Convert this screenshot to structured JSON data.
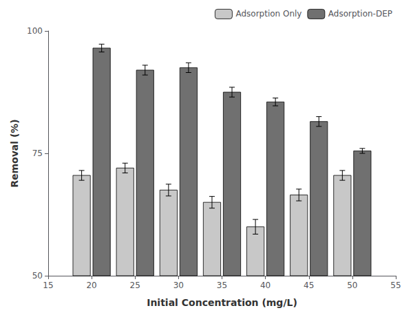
{
  "chart_data": {
    "type": "bar",
    "xlabel": "Initial Concentration (mg/L)",
    "ylabel": "Removal (%)",
    "x": [
      20,
      25,
      30,
      35,
      40,
      45,
      50
    ],
    "series": [
      {
        "name": "Adsorption Only",
        "color": "#c8c8c8",
        "values": [
          70.5,
          72.0,
          67.5,
          65.0,
          60.0,
          66.5,
          70.5
        ],
        "errors": [
          1.0,
          1.0,
          1.2,
          1.2,
          1.5,
          1.2,
          1.0
        ]
      },
      {
        "name": "Adsorption-DEP",
        "color": "#707070",
        "values": [
          96.5,
          92.0,
          92.5,
          87.5,
          85.5,
          81.5,
          75.5
        ],
        "errors": [
          0.8,
          1.0,
          1.0,
          1.0,
          0.8,
          1.0,
          0.5
        ]
      }
    ],
    "xlim": [
      15,
      55
    ],
    "xticks": [
      15,
      20,
      25,
      30,
      35,
      40,
      45,
      50,
      55
    ],
    "ylim": [
      50,
      100
    ],
    "yticks": [
      50,
      75,
      100
    ],
    "legend": "upper right",
    "grid": false
  }
}
